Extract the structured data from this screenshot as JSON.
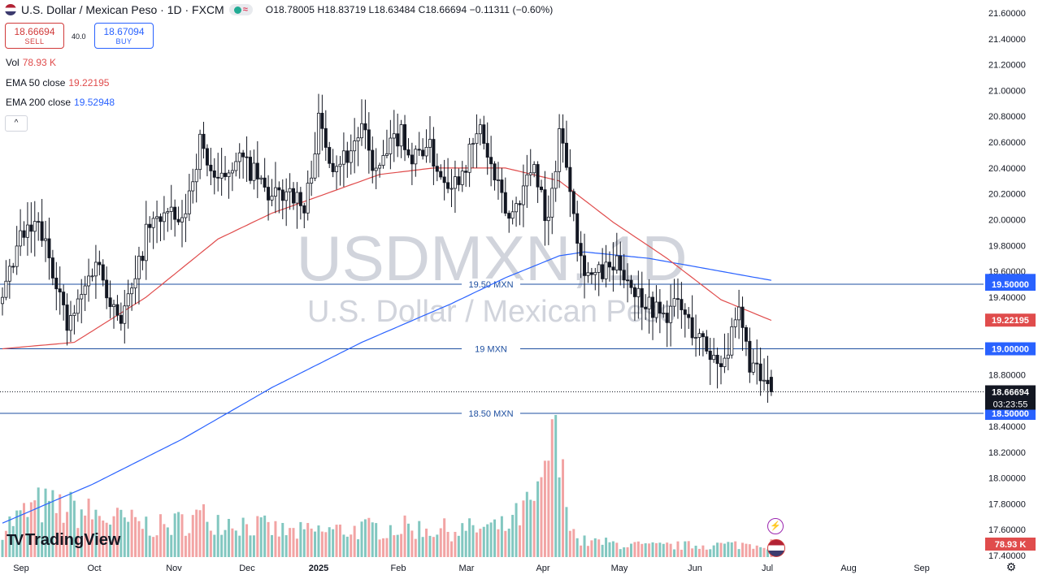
{
  "header": {
    "title": "U.S. Dollar / Mexican Peso · 1D · FXCM",
    "ohlc": "O18.78005  H18.83719  L18.63484  C18.66694  −0.11311 (−0.60%)"
  },
  "trade": {
    "sell_price": "18.66694",
    "sell_label": "SELL",
    "spread": "40.0",
    "buy_price": "18.67094",
    "buy_label": "BUY"
  },
  "indicators": {
    "vol_label": "Vol",
    "vol_value": "78.93 K",
    "ema50_label": "EMA 50 close",
    "ema50_value": "19.22195",
    "ema200_label": "EMA 200 close",
    "ema200_value": "19.52948"
  },
  "collapse_label": "^",
  "logo_text": "TradingView",
  "colors": {
    "up": "#131722",
    "down": "#131722",
    "ema50": "#e04c4c",
    "ema200": "#2962ff",
    "vol_up": "#82c7c0",
    "vol_down": "#f2a4a4",
    "hline": "#1e4fa0",
    "watermark": "#d1d4dc"
  },
  "icons": [
    "tradingview-logo-icon",
    "us-flag-icon",
    "lightning-icon",
    "settings-gear-icon"
  ],
  "chart_data": {
    "type": "candlestick",
    "symbol": "USDMXN",
    "timeframe": "1D",
    "watermark_symbol": "USDMXN, 1D",
    "watermark_name": "U.S. Dollar / Mexican Peso",
    "ylim": [
      17.4,
      21.6
    ],
    "y_ticks": [
      "21.60000",
      "21.40000",
      "21.20000",
      "21.00000",
      "20.80000",
      "20.60000",
      "20.40000",
      "20.20000",
      "20.00000",
      "19.80000",
      "19.60000",
      "19.40000",
      "19.20000",
      "19.00000",
      "18.80000",
      "18.60000",
      "18.40000",
      "18.20000",
      "18.00000",
      "17.80000",
      "17.60000",
      "17.40000"
    ],
    "x_ticks": [
      "Sep",
      "Oct",
      "Nov",
      "Dec",
      "2025",
      "Feb",
      "Mar",
      "Apr",
      "May",
      "Jun",
      "Jul",
      "Aug",
      "Sep"
    ],
    "month_starts": [
      "2024-08-26",
      "2024-09-30",
      "2024-10-30",
      "2024-11-29",
      "2024-12-31",
      "2025-01-31",
      "2025-02-28",
      "2025-03-31",
      "2025-04-30",
      "2025-05-30",
      "2025-07-01",
      "2025-07-31",
      "2025-08-29"
    ],
    "bars_visible": 215,
    "close_path": [
      {
        "t": 0,
        "c": 19.35
      },
      {
        "t": 5,
        "c": 19.85
      },
      {
        "t": 10,
        "c": 19.95
      },
      {
        "t": 15,
        "c": 19.55
      },
      {
        "t": 18,
        "c": 19.15
      },
      {
        "t": 22,
        "c": 19.4
      },
      {
        "t": 26,
        "c": 19.7
      },
      {
        "t": 30,
        "c": 19.4
      },
      {
        "t": 33,
        "c": 19.25
      },
      {
        "t": 37,
        "c": 19.5
      },
      {
        "t": 40,
        "c": 19.9
      },
      {
        "t": 45,
        "c": 20.05
      },
      {
        "t": 50,
        "c": 19.95
      },
      {
        "t": 55,
        "c": 20.6
      },
      {
        "t": 60,
        "c": 20.25
      },
      {
        "t": 65,
        "c": 20.5
      },
      {
        "t": 70,
        "c": 20.35
      },
      {
        "t": 75,
        "c": 20.15
      },
      {
        "t": 80,
        "c": 20.25
      },
      {
        "t": 84,
        "c": 20.05
      },
      {
        "t": 88,
        "c": 20.75
      },
      {
        "t": 92,
        "c": 20.45
      },
      {
        "t": 96,
        "c": 20.5
      },
      {
        "t": 100,
        "c": 20.7
      },
      {
        "t": 104,
        "c": 20.35
      },
      {
        "t": 108,
        "c": 20.55
      },
      {
        "t": 111,
        "c": 20.7
      },
      {
        "t": 114,
        "c": 20.45
      },
      {
        "t": 118,
        "c": 20.6
      },
      {
        "t": 122,
        "c": 20.35
      },
      {
        "t": 126,
        "c": 20.3
      },
      {
        "t": 130,
        "c": 20.5
      },
      {
        "t": 133,
        "c": 20.7
      },
      {
        "t": 137,
        "c": 20.3
      },
      {
        "t": 141,
        "c": 20.0
      },
      {
        "t": 145,
        "c": 20.25
      },
      {
        "t": 148,
        "c": 20.45
      },
      {
        "t": 152,
        "c": 19.95
      },
      {
        "t": 155,
        "c": 20.7
      },
      {
        "t": 158,
        "c": 20.3
      },
      {
        "t": 161,
        "c": 19.7
      },
      {
        "t": 164,
        "c": 19.55
      },
      {
        "t": 168,
        "c": 19.6
      },
      {
        "t": 172,
        "c": 19.65
      },
      {
        "t": 176,
        "c": 19.45
      },
      {
        "t": 180,
        "c": 19.35
      },
      {
        "t": 184,
        "c": 19.25
      },
      {
        "t": 188,
        "c": 19.35
      },
      {
        "t": 192,
        "c": 19.15
      },
      {
        "t": 196,
        "c": 19.0
      },
      {
        "t": 199,
        "c": 18.9
      },
      {
        "t": 202,
        "c": 19.0
      },
      {
        "t": 205,
        "c": 19.25
      },
      {
        "t": 208,
        "c": 18.9
      },
      {
        "t": 211,
        "c": 18.75
      },
      {
        "t": 214,
        "c": 18.67
      }
    ],
    "last": {
      "open": 18.78005,
      "high": 18.83719,
      "low": 18.63484,
      "close": 18.66694,
      "change": -0.11311,
      "change_pct": -0.6
    },
    "ema50_path": [
      {
        "t": 0,
        "c": 19.0
      },
      {
        "t": 20,
        "c": 19.05
      },
      {
        "t": 40,
        "c": 19.4
      },
      {
        "t": 60,
        "c": 19.85
      },
      {
        "t": 75,
        "c": 20.05
      },
      {
        "t": 90,
        "c": 20.2
      },
      {
        "t": 105,
        "c": 20.35
      },
      {
        "t": 120,
        "c": 20.4
      },
      {
        "t": 140,
        "c": 20.4
      },
      {
        "t": 155,
        "c": 20.3
      },
      {
        "t": 170,
        "c": 19.98
      },
      {
        "t": 185,
        "c": 19.7
      },
      {
        "t": 200,
        "c": 19.38
      },
      {
        "t": 214,
        "c": 19.22
      }
    ],
    "ema200_path": [
      {
        "t": 0,
        "c": 17.65
      },
      {
        "t": 25,
        "c": 17.95
      },
      {
        "t": 50,
        "c": 18.3
      },
      {
        "t": 75,
        "c": 18.7
      },
      {
        "t": 100,
        "c": 19.05
      },
      {
        "t": 125,
        "c": 19.35
      },
      {
        "t": 140,
        "c": 19.55
      },
      {
        "t": 155,
        "c": 19.72
      },
      {
        "t": 162,
        "c": 19.75
      },
      {
        "t": 180,
        "c": 19.7
      },
      {
        "t": 200,
        "c": 19.6
      },
      {
        "t": 214,
        "c": 19.53
      }
    ],
    "volume_path": [
      {
        "t": 0,
        "v": 0.22
      },
      {
        "t": 10,
        "v": 0.38
      },
      {
        "t": 20,
        "v": 0.35
      },
      {
        "t": 30,
        "v": 0.28
      },
      {
        "t": 45,
        "v": 0.22
      },
      {
        "t": 55,
        "v": 0.3
      },
      {
        "t": 65,
        "v": 0.26
      },
      {
        "t": 80,
        "v": 0.18
      },
      {
        "t": 95,
        "v": 0.2
      },
      {
        "t": 110,
        "v": 0.22
      },
      {
        "t": 125,
        "v": 0.2
      },
      {
        "t": 140,
        "v": 0.22
      },
      {
        "t": 150,
        "v": 0.45
      },
      {
        "t": 153,
        "v": 0.95
      },
      {
        "t": 156,
        "v": 0.55
      },
      {
        "t": 160,
        "v": 0.12
      },
      {
        "t": 180,
        "v": 0.08
      },
      {
        "t": 200,
        "v": 0.09
      },
      {
        "t": 214,
        "v": 0.1
      }
    ],
    "vol_last_label": "78.93 K",
    "horizontal_levels": [
      {
        "value": 19.5,
        "label": "19.50 MXN",
        "axis_label": "19.50000"
      },
      {
        "value": 19.0,
        "label": "19 MXN",
        "axis_label": "19.00000"
      },
      {
        "value": 18.5,
        "label": "18.50 MXN",
        "axis_label": "18.50000"
      }
    ],
    "axis_badges": [
      {
        "value": 19.52948,
        "text": "19.52948",
        "color": "#2962ff"
      },
      {
        "value": 19.5,
        "text": "19.50000",
        "color": "#2962ff"
      },
      {
        "value": 19.22195,
        "text": "19.22195",
        "color": "#e04c4c"
      },
      {
        "value": 19.0,
        "text": "19.00000",
        "color": "#2962ff"
      },
      {
        "value": 18.66694,
        "text": "18.66694",
        "color": "#131722"
      },
      {
        "value": 18.5,
        "text": "18.50000",
        "color": "#2962ff"
      }
    ],
    "countdown": "03:23:55",
    "grid": false
  }
}
